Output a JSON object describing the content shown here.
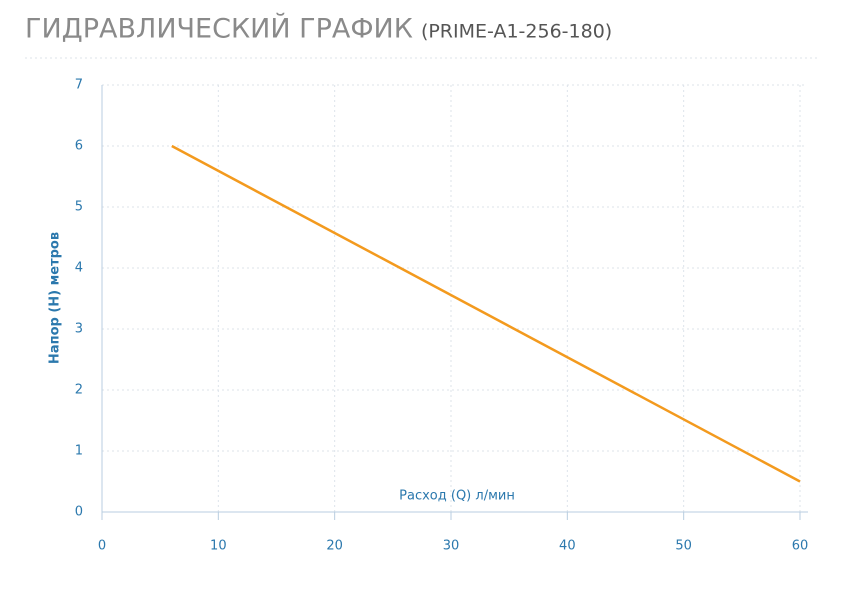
{
  "chart_data": {
    "type": "line",
    "title": "ГИДРАВЛИЧЕСКИЙ ГРАФИК",
    "subtitle": "(PRIME-A1-256-180)",
    "x_label": "Расход (Q) л/мин",
    "y_label": "Напор (H) метров",
    "series": [
      {
        "name": "PRIME-A1-256-180",
        "color": "#f39a1e",
        "x": [
          6,
          60
        ],
        "values": [
          6,
          0.5
        ]
      }
    ],
    "xlim": [
      0,
      60
    ],
    "xticks": [
      0,
      10,
      20,
      30,
      40,
      50,
      60
    ],
    "ylim": [
      0,
      7
    ],
    "yticks": [
      0,
      1,
      2,
      3,
      4,
      5,
      6,
      7
    ],
    "grid": true
  }
}
